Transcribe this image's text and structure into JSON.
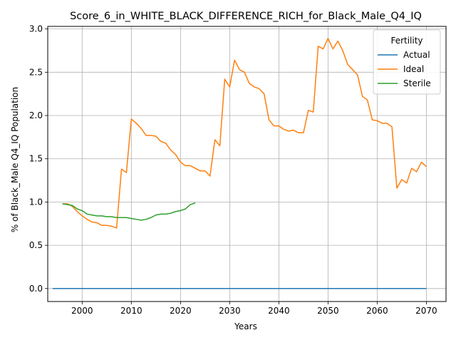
{
  "chart_data": {
    "type": "line",
    "title": "Score_6_in_WHITE_BLACK_DIFFERENCE_RICH_for_Black_Male_Q4_IQ",
    "xlabel": "Years",
    "ylabel": "% of Black_Male Q4_IQ Population",
    "xlim": [
      1993,
      2074
    ],
    "ylim": [
      -0.15,
      3.03
    ],
    "xticks": [
      2000,
      2010,
      2020,
      2030,
      2040,
      2050,
      2060,
      2070
    ],
    "yticks": [
      0.0,
      0.5,
      1.0,
      1.5,
      2.0,
      2.5,
      3.0
    ],
    "xtick_labels": [
      "2000",
      "2010",
      "2020",
      "2030",
      "2040",
      "2050",
      "2060",
      "2070"
    ],
    "ytick_labels": [
      "0.0",
      "0.5",
      "1.0",
      "1.5",
      "2.0",
      "2.5",
      "3.0"
    ],
    "grid": true,
    "legend": {
      "title": "Fertility",
      "placement": "top-right"
    },
    "series": [
      {
        "name": "Actual",
        "color": "#1f77b4",
        "x": [
          1994,
          2070
        ],
        "y": [
          0.0,
          0.0
        ]
      },
      {
        "name": "Ideal",
        "color": "#ff7f0e",
        "x": [
          1996,
          1997,
          1998,
          1999,
          2000,
          2001,
          2002,
          2003,
          2004,
          2005,
          2006,
          2007,
          2008,
          2009,
          2010,
          2011,
          2012,
          2013,
          2014,
          2015,
          2016,
          2017,
          2018,
          2019,
          2020,
          2021,
          2022,
          2023,
          2024,
          2025,
          2026,
          2027,
          2028,
          2029,
          2030,
          2031,
          2032,
          2033,
          2034,
          2035,
          2036,
          2037,
          2038,
          2039,
          2040,
          2041,
          2042,
          2043,
          2044,
          2045,
          2046,
          2047,
          2048,
          2049,
          2050,
          2051,
          2052,
          2053,
          2054,
          2055,
          2056,
          2057,
          2058,
          2059,
          2060,
          2061,
          2062,
          2063,
          2064,
          2065,
          2066,
          2067,
          2068,
          2069,
          2070
        ],
        "y": [
          0.98,
          0.98,
          0.95,
          0.89,
          0.84,
          0.8,
          0.77,
          0.76,
          0.73,
          0.73,
          0.72,
          0.7,
          1.38,
          1.34,
          1.96,
          1.91,
          1.85,
          1.77,
          1.77,
          1.76,
          1.7,
          1.68,
          1.6,
          1.55,
          1.46,
          1.42,
          1.42,
          1.39,
          1.36,
          1.36,
          1.3,
          1.72,
          1.65,
          2.42,
          2.33,
          2.64,
          2.53,
          2.5,
          2.37,
          2.33,
          2.31,
          2.25,
          1.95,
          1.88,
          1.88,
          1.84,
          1.82,
          1.83,
          1.8,
          1.8,
          2.06,
          2.04,
          2.8,
          2.77,
          2.89,
          2.77,
          2.86,
          2.75,
          2.59,
          2.53,
          2.47,
          2.22,
          2.18,
          1.95,
          1.94,
          1.91,
          1.91,
          1.87,
          1.16,
          1.26,
          1.22,
          1.39,
          1.35,
          1.46,
          1.41
        ]
      },
      {
        "name": "Sterile",
        "color": "#2ca02c",
        "x": [
          1996,
          1997,
          1998,
          1999,
          2000,
          2001,
          2002,
          2003,
          2004,
          2005,
          2006,
          2007,
          2008,
          2009,
          2010,
          2011,
          2012,
          2013,
          2014,
          2015,
          2016,
          2017,
          2018,
          2019,
          2020,
          2021,
          2022,
          2023
        ],
        "y": [
          0.98,
          0.97,
          0.96,
          0.92,
          0.9,
          0.86,
          0.85,
          0.84,
          0.84,
          0.83,
          0.83,
          0.82,
          0.82,
          0.82,
          0.81,
          0.8,
          0.79,
          0.8,
          0.82,
          0.85,
          0.86,
          0.86,
          0.87,
          0.89,
          0.9,
          0.92,
          0.97,
          0.99
        ]
      }
    ]
  }
}
